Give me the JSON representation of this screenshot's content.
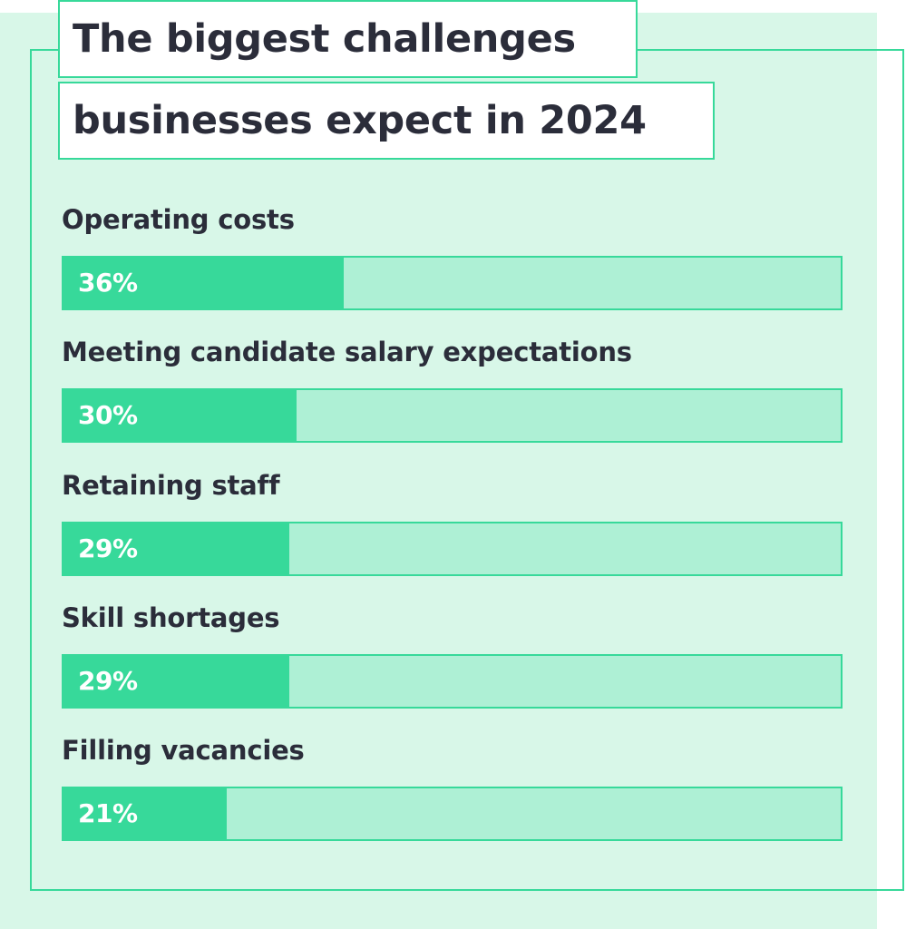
{
  "title_line_1": "The biggest challenges",
  "title_line_2": "businesses expect in 2024",
  "colors": {
    "background": "#d8f7e8",
    "accent": "#37d99a",
    "track": "#aef0d5",
    "text": "#2b2d3a"
  },
  "chart_data": {
    "type": "bar",
    "orientation": "horizontal",
    "title": "The biggest challenges businesses expect in 2024",
    "xlabel": "",
    "ylabel": "",
    "xlim": [
      0,
      100
    ],
    "grid": false,
    "categories": [
      "Operating costs",
      "Meeting candidate salary expectations",
      "Retaining staff",
      "Skill shortages",
      "Filling vacancies"
    ],
    "values": [
      36,
      30,
      29,
      29,
      21
    ],
    "value_labels": [
      "36%",
      "30%",
      "29%",
      "29%",
      "21%"
    ]
  }
}
